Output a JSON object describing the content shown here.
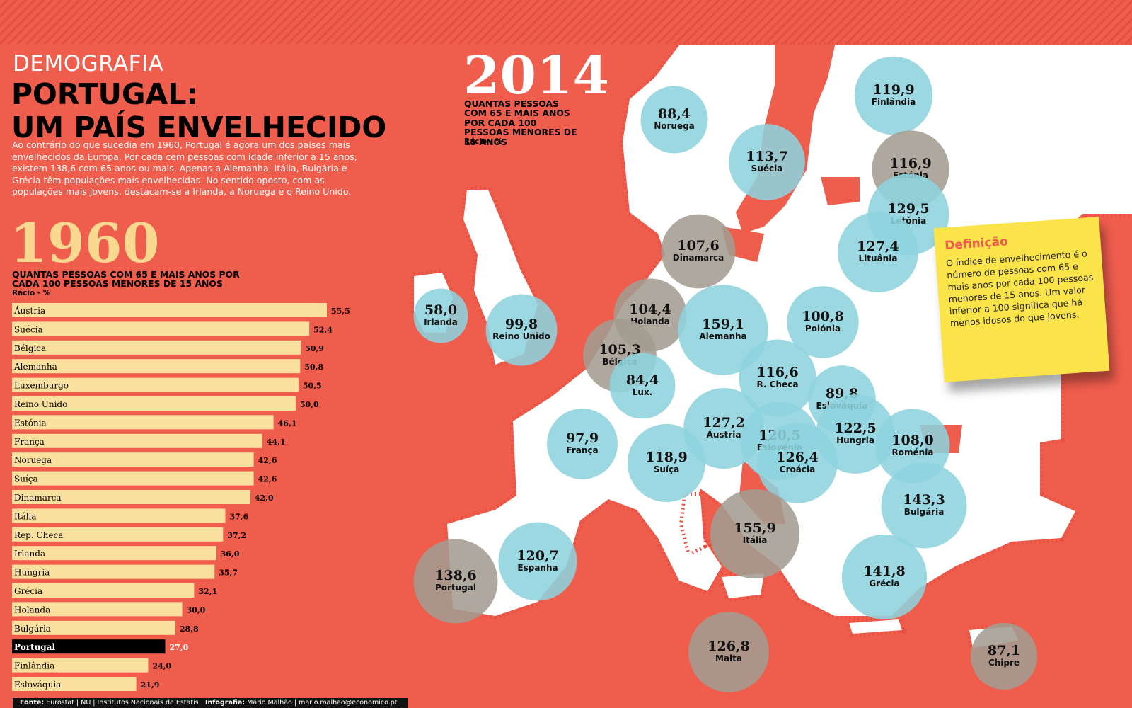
{
  "header": {
    "section": "DEMOGRAFIA",
    "title_line1": "PORTUGAL:",
    "title_line2": "UM PAÍS ENVELHECIDO",
    "lead": "Ao contrário do que sucedia em 1960, Portugal é agora um dos países mais envelhecidos da Europa. Por cada cem pessoas com idade inferior a 15 anos, existem 138,6 com 65 anos ou mais. Apenas a Alemanha, Itália, Bulgária e Grécia têm populações mais envelhecidas. No sentido oposto, com as populações mais jovens, destacam-se a Irlanda, a Noruega e o Reino Unido."
  },
  "colors": {
    "background": "#ef5d4d",
    "bar": "#f9e09e",
    "bar_highlight": "#000000",
    "bubble": "#8ed3de",
    "bubble_grey": "#a39c91",
    "land": "#ffffff"
  },
  "chart_data": [
    {
      "type": "bar",
      "orientation": "horizontal",
      "year_label": "1960",
      "subtitle": "QUANTAS PESSOAS COM 65 E MAIS ANOS POR CADA 100 PESSOAS MENORES DE 15 ANOS",
      "unit_label": "Rácio - %",
      "highlight": "Portugal",
      "categories": [
        "Áustria",
        "Suécia",
        "Bélgica",
        "Alemanha",
        "Luxemburgo",
        "Reino Unido",
        "Estónia",
        "França",
        "Noruega",
        "Suíça",
        "Dinamarca",
        "Itália",
        "Rep. Checa",
        "Irlanda",
        "Hungria",
        "Grécia",
        "Holanda",
        "Bulgária",
        "Portugal",
        "Finlândia",
        "Eslováquia"
      ],
      "values": [
        55.5,
        52.4,
        50.9,
        50.8,
        50.5,
        50.0,
        46.1,
        44.1,
        42.6,
        42.6,
        42.0,
        37.6,
        37.2,
        36.0,
        35.7,
        32.1,
        30.0,
        28.8,
        27.0,
        24.0,
        21.9
      ],
      "labels": [
        "55,5",
        "52,4",
        "50,9",
        "50,8",
        "50,5",
        "50,0",
        "46,1",
        "44,1",
        "42,6",
        "42,6",
        "42,0",
        "37,6",
        "37,2",
        "36,0",
        "35,7",
        "32,1",
        "30,0",
        "28,8",
        "27,0",
        "24,0",
        "21,9"
      ]
    },
    {
      "type": "bubble-map",
      "year_label": "2014",
      "subtitle": "QUANTAS PESSOAS COM 65 E MAIS ANOS POR CADA 100 PESSOAS MENORES DE 15 ANOS",
      "unit_label": "Rácio - %",
      "points": [
        {
          "country": "Finlândia",
          "value": 119.9,
          "label": "119,9",
          "color": "blue"
        },
        {
          "country": "Noruega",
          "value": 88.4,
          "label": "88,4",
          "color": "blue"
        },
        {
          "country": "Suécia",
          "value": 113.7,
          "label": "113,7",
          "color": "blue"
        },
        {
          "country": "Estónia",
          "value": 116.9,
          "label": "116,9",
          "color": "grey"
        },
        {
          "country": "Letónia",
          "value": 129.5,
          "label": "129,5",
          "color": "blue"
        },
        {
          "country": "Lituânia",
          "value": 127.4,
          "label": "127,4",
          "color": "blue"
        },
        {
          "country": "Dinamarca",
          "value": 107.6,
          "label": "107,6",
          "color": "grey"
        },
        {
          "country": "Irlanda",
          "value": 58.0,
          "label": "58,0",
          "color": "blue"
        },
        {
          "country": "Reino Unido",
          "value": 99.8,
          "label": "99,8",
          "color": "blue"
        },
        {
          "country": "Holanda",
          "value": 104.4,
          "label": "104,4",
          "color": "grey"
        },
        {
          "country": "Alemanha",
          "value": 159.1,
          "label": "159,1",
          "color": "blue"
        },
        {
          "country": "Polónia",
          "value": 100.8,
          "label": "100,8",
          "color": "blue"
        },
        {
          "country": "Bélgica",
          "value": 105.3,
          "label": "105,3",
          "color": "grey"
        },
        {
          "country": "Lux.",
          "value": 84.4,
          "label": "84,4",
          "color": "blue"
        },
        {
          "country": "R. Checa",
          "value": 116.6,
          "label": "116,6",
          "color": "blue"
        },
        {
          "country": "Eslováquia",
          "value": 89.8,
          "label": "89,8",
          "color": "blue"
        },
        {
          "country": "França",
          "value": 97.9,
          "label": "97,9",
          "color": "blue"
        },
        {
          "country": "Suíça",
          "value": 118.9,
          "label": "118,9",
          "color": "blue"
        },
        {
          "country": "Áustria",
          "value": 127.2,
          "label": "127,2",
          "color": "blue"
        },
        {
          "country": "Eslovénia",
          "value": 120.5,
          "label": "120,5",
          "color": "blue"
        },
        {
          "country": "Hungria",
          "value": 122.5,
          "label": "122,5",
          "color": "blue"
        },
        {
          "country": "Roménia",
          "value": 108.0,
          "label": "108,0",
          "color": "blue"
        },
        {
          "country": "Croácia",
          "value": 126.4,
          "label": "126,4",
          "color": "blue"
        },
        {
          "country": "Bulgária",
          "value": 143.3,
          "label": "143,3",
          "color": "blue"
        },
        {
          "country": "Itália",
          "value": 155.9,
          "label": "155,9",
          "color": "grey"
        },
        {
          "country": "Portugal",
          "value": 138.6,
          "label": "138,6",
          "color": "grey"
        },
        {
          "country": "Espanha",
          "value": 120.7,
          "label": "120,7",
          "color": "blue"
        },
        {
          "country": "Grécia",
          "value": 141.8,
          "label": "141,8",
          "color": "blue"
        },
        {
          "country": "Malta",
          "value": 126.8,
          "label": "126,8",
          "color": "grey"
        },
        {
          "country": "Chipre",
          "value": 87.1,
          "label": "87,1",
          "color": "grey"
        }
      ]
    }
  ],
  "note": {
    "title": "Definição",
    "body": "O índice de envelhecimento é o número de pessoas com 65 e mais anos por cada 100 pessoas menores de 15 anos. Um valor inferior a 100 significa que há menos idosos do que jovens."
  },
  "footer": {
    "source_label": "Fonte:",
    "source_text": "Eurostat | NU | Institutos Nacionais de Estatística",
    "credit_label": "Infografia:",
    "credit_text": "Mário Malhão | mario.malhao@economico.pt"
  }
}
